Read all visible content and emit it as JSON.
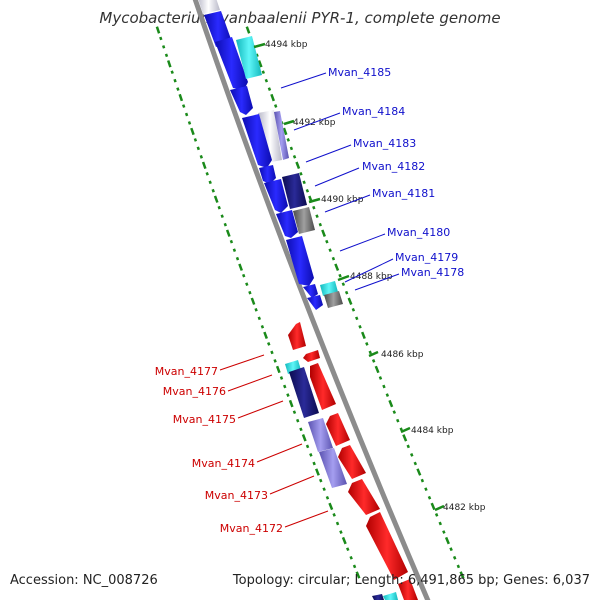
{
  "title": "Mycobacterium vanbaalenii PYR-1, complete genome",
  "accession": "Accession: NC_008726",
  "topology": "Topology: circular; Length: 6,491,865 bp; Genes: 6,037",
  "colors": {
    "forward_gene": "#1515e8",
    "reverse_gene": "#f21010",
    "cyan_gene": "#22e4e8",
    "navy_gene": "#1c1c78",
    "lavender_gene": "#7b74cf",
    "gray_gene": "#777777",
    "label_forward": "#1010cc",
    "label_reverse": "#cc0000",
    "tick_green": "#1a8a1a",
    "backbone": "#8c8c8c"
  },
  "kbp_ticks": [
    "4494 kbp",
    "4492 kbp",
    "4490 kbp",
    "4488 kbp",
    "4486 kbp",
    "4484 kbp",
    "4482 kbp"
  ],
  "labels_forward": [
    "Mvan_4185",
    "Mvan_4184",
    "Mvan_4183",
    "Mvan_4182",
    "Mvan_4181",
    "Mvan_4180",
    "Mvan_4179",
    "Mvan_4178"
  ],
  "labels_reverse": [
    "Mvan_4177",
    "Mvan_4176",
    "Mvan_4175",
    "Mvan_4174",
    "Mvan_4173",
    "Mvan_4172"
  ]
}
